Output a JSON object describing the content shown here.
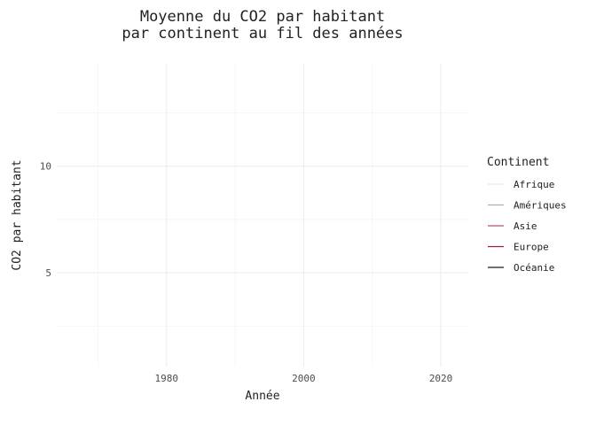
{
  "chart_data": {
    "type": "line",
    "title_lines": [
      "Moyenne du CO2 par habitant",
      "par continent au fil des années"
    ],
    "xlabel": "Année",
    "ylabel": "CO2 par habitant",
    "xlim": [
      1964,
      2024
    ],
    "ylim": [
      0.6,
      14.8
    ],
    "x_ticks": [
      1980,
      2000,
      2020
    ],
    "y_ticks": [
      5,
      10
    ],
    "x_minor": [
      1970,
      1990,
      2010
    ],
    "y_minor": [
      2.5,
      7.5,
      12.5
    ],
    "grid": true,
    "legend": {
      "title": "Continent",
      "placement": "right"
    },
    "series": [
      {
        "name": "Afrique",
        "color": "#e6e6e6",
        "x": [],
        "y": []
      },
      {
        "name": "Amériques",
        "color": "#c9a3ad",
        "x": [],
        "y": []
      },
      {
        "name": "Asie",
        "color": "#b2566b",
        "x": [],
        "y": []
      },
      {
        "name": "Europe",
        "color": "#7b2d55",
        "x": [],
        "y": []
      },
      {
        "name": "Océanie",
        "color": "#1a1a1a",
        "x": [],
        "y": []
      }
    ]
  }
}
